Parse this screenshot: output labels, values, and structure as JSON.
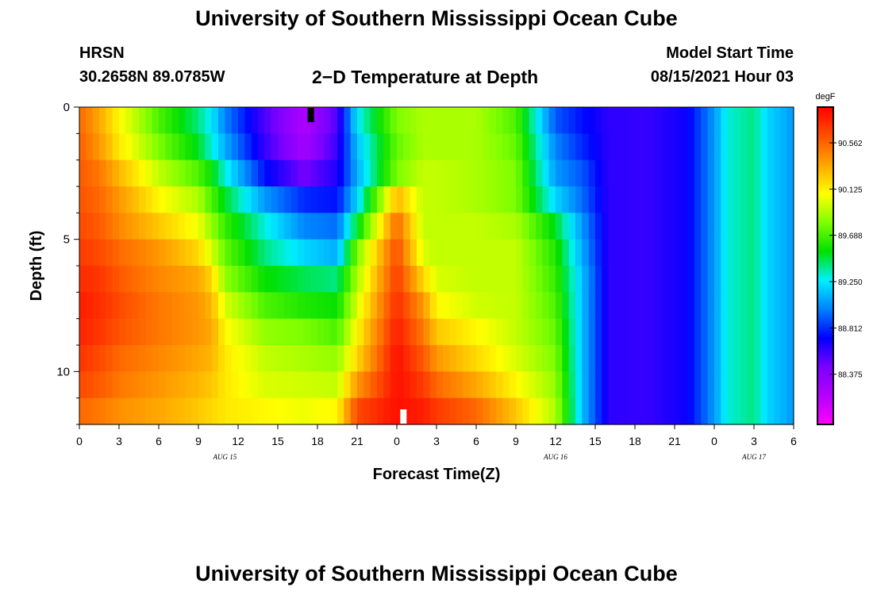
{
  "header": {
    "title": "University of Southern Mississippi Ocean Cube",
    "station": "HRSN",
    "coords": "30.2658N  89.0785W",
    "chart_title": "2−D Temperature at Depth",
    "model_start_label": "Model Start Time",
    "model_start_value": "08/15/2021 Hour 03"
  },
  "footer": {
    "title": "University of Southern Mississippi Ocean Cube"
  },
  "chart_data": {
    "type": "heatmap",
    "title": "2−D Temperature at Depth",
    "xlabel": "Forecast Time(Z)",
    "ylabel": "Depth (ft)",
    "x_range": [
      0,
      54
    ],
    "x_units": "hours since 2021-08-15 00Z",
    "y_range": [
      0,
      12
    ],
    "y_inverted": true,
    "x_tick_labels": [
      "0",
      "3",
      "6",
      "9",
      "12",
      "15",
      "18",
      "21",
      "0",
      "3",
      "6",
      "9",
      "12",
      "15",
      "18",
      "21",
      "0",
      "3",
      "6"
    ],
    "date_labels": [
      {
        "text": "AUG 15",
        "hour": 11
      },
      {
        "text": "AUG 16",
        "hour": 36
      },
      {
        "text": "AUG 17",
        "hour": 51
      }
    ],
    "y_ticks": [
      0,
      5,
      10
    ],
    "colorbar": {
      "units": "degF",
      "min": 87.9,
      "max": 90.9,
      "tick_values": [
        "88.375",
        "88.812",
        "89.250",
        "89.688",
        "90.125",
        "90.562"
      ]
    },
    "markers": [
      {
        "label": "top-marker",
        "hour": 17.5,
        "depth": 0.3,
        "color": "#000000"
      },
      {
        "label": "bottom-marker",
        "hour": 24.5,
        "depth": 11.7,
        "color": "#ffffff"
      }
    ],
    "depth_levels": [
      0.5,
      1.5,
      2.5,
      3.5,
      4.5,
      5.5,
      6.5,
      7.5,
      8.5,
      9.5,
      10.5,
      11.5
    ],
    "time_hours": [
      0,
      1.5,
      3,
      6,
      9,
      10,
      11,
      14,
      17,
      19.5,
      21,
      24,
      26,
      27,
      30,
      33,
      36,
      38,
      40,
      43,
      46,
      48,
      49,
      51,
      52,
      54
    ],
    "temperature_degF": [
      [
        90.55,
        90.35,
        90.1,
        89.7,
        89.4,
        89.25,
        89.0,
        88.55,
        88.2,
        88.55,
        89.25,
        89.8,
        89.9,
        89.9,
        89.9,
        89.7,
        88.9,
        88.75,
        88.62,
        88.6,
        88.7,
        89.05,
        89.3,
        89.4,
        89.2,
        89.05
      ],
      [
        90.58,
        90.4,
        90.15,
        89.8,
        89.5,
        89.3,
        89.1,
        88.6,
        88.25,
        88.6,
        89.15,
        89.75,
        89.9,
        89.9,
        89.9,
        89.75,
        89.0,
        88.8,
        88.62,
        88.6,
        88.7,
        89.05,
        89.3,
        89.4,
        89.2,
        89.05
      ],
      [
        90.6,
        90.5,
        90.3,
        89.95,
        89.7,
        89.55,
        89.3,
        88.75,
        88.45,
        88.65,
        89.1,
        89.8,
        89.95,
        89.95,
        89.9,
        89.8,
        89.05,
        88.9,
        88.62,
        88.6,
        88.7,
        89.05,
        89.3,
        89.4,
        89.2,
        89.05
      ],
      [
        90.62,
        90.55,
        90.4,
        90.1,
        89.9,
        89.7,
        89.5,
        89.05,
        88.8,
        88.75,
        89.2,
        90.3,
        89.95,
        89.95,
        89.9,
        89.8,
        89.2,
        88.95,
        88.62,
        88.6,
        88.7,
        89.05,
        89.3,
        89.4,
        89.2,
        89.05
      ],
      [
        90.65,
        90.6,
        90.45,
        90.25,
        90.05,
        89.85,
        89.65,
        89.3,
        89.0,
        88.95,
        89.5,
        90.55,
        89.95,
        89.95,
        89.95,
        89.9,
        89.5,
        89.05,
        88.62,
        88.6,
        88.7,
        89.05,
        89.3,
        89.4,
        89.2,
        89.05
      ],
      [
        90.7,
        90.65,
        90.55,
        90.4,
        90.2,
        90.0,
        89.75,
        89.4,
        89.2,
        89.1,
        89.8,
        90.65,
        90.0,
        89.95,
        89.95,
        89.95,
        89.6,
        89.1,
        88.62,
        88.6,
        88.7,
        89.05,
        89.3,
        89.4,
        89.2,
        89.05
      ],
      [
        90.75,
        90.72,
        90.6,
        90.45,
        90.35,
        90.2,
        89.85,
        89.55,
        89.45,
        89.4,
        89.9,
        90.7,
        90.2,
        90.0,
        89.95,
        89.95,
        89.65,
        89.15,
        88.62,
        88.6,
        88.7,
        89.05,
        89.3,
        89.4,
        89.2,
        89.05
      ],
      [
        90.8,
        90.75,
        90.65,
        90.5,
        90.4,
        90.3,
        90.0,
        89.7,
        89.6,
        89.55,
        90.0,
        90.75,
        90.4,
        90.1,
        89.98,
        89.95,
        89.7,
        89.15,
        88.62,
        88.6,
        88.7,
        89.05,
        89.3,
        89.4,
        89.2,
        89.05
      ],
      [
        90.78,
        90.72,
        90.62,
        90.5,
        90.4,
        90.35,
        90.1,
        89.85,
        89.8,
        89.7,
        90.1,
        90.8,
        90.5,
        90.25,
        90.1,
        89.95,
        89.75,
        89.15,
        88.62,
        88.6,
        88.7,
        89.05,
        89.3,
        89.4,
        89.2,
        89.05
      ],
      [
        90.72,
        90.65,
        90.55,
        90.45,
        90.35,
        90.3,
        90.15,
        89.95,
        89.9,
        89.85,
        90.2,
        90.85,
        90.6,
        90.4,
        90.2,
        90.0,
        89.8,
        89.15,
        88.62,
        88.6,
        88.7,
        89.05,
        89.3,
        89.4,
        89.2,
        89.05
      ],
      [
        90.65,
        90.6,
        90.5,
        90.4,
        90.3,
        90.25,
        90.15,
        90.0,
        89.98,
        89.95,
        90.4,
        90.85,
        90.7,
        90.55,
        90.35,
        90.1,
        89.85,
        89.15,
        88.62,
        88.6,
        88.7,
        89.05,
        89.3,
        89.4,
        89.2,
        89.05
      ],
      [
        90.55,
        90.5,
        90.42,
        90.35,
        90.25,
        90.2,
        90.15,
        90.1,
        90.05,
        90.1,
        90.65,
        90.85,
        90.8,
        90.7,
        90.55,
        90.25,
        89.9,
        89.15,
        88.62,
        88.6,
        88.7,
        89.05,
        89.3,
        89.4,
        89.2,
        89.05
      ]
    ]
  }
}
